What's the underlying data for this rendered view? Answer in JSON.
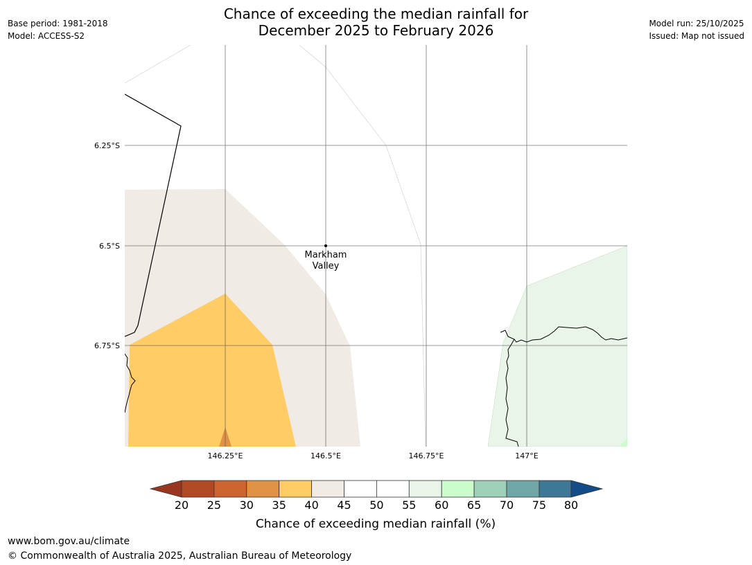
{
  "header": {
    "title_line1": "Chance of exceeding the median rainfall for",
    "title_line2": "December 2025 to February 2026",
    "base_period": "Base period: 1981-2018",
    "model": "Model: ACCESS-S2",
    "model_run": "Model run: 25/10/2025",
    "issued": "Issued: Map not issued"
  },
  "map": {
    "lat_labels": [
      "6.25°S",
      "6.5°S",
      "6.75°S"
    ],
    "lon_labels": [
      "146.25°E",
      "146.5°E",
      "146.75°E",
      "147°E"
    ],
    "place": {
      "name_line1": "Markham",
      "name_line2": "Valley"
    }
  },
  "legend": {
    "ticks": [
      "20",
      "25",
      "30",
      "35",
      "40",
      "45",
      "50",
      "55",
      "60",
      "65",
      "70",
      "75",
      "80"
    ],
    "label": "Chance of exceeding median rainfall (%)",
    "colors": {
      "below20": "#99361f",
      "20-25": "#b04a25",
      "25-30": "#cd6430",
      "30-35": "#e09145",
      "35-40": "#ffcc66",
      "40-45": "#f0ebe5",
      "45-50": "#ffffff",
      "50-55": "#ffffff",
      "55-60": "#eaf5ea",
      "60-65": "#ccfccc",
      "65-70": "#9ecfb8",
      "70-75": "#6fa6a6",
      "75-80": "#3f7896",
      "above80": "#144c87"
    }
  },
  "footer": {
    "url": "www.bom.gov.au/climate",
    "copyright": "© Commonwealth of Australia 2025, Australian Bureau of Meteorology"
  }
}
